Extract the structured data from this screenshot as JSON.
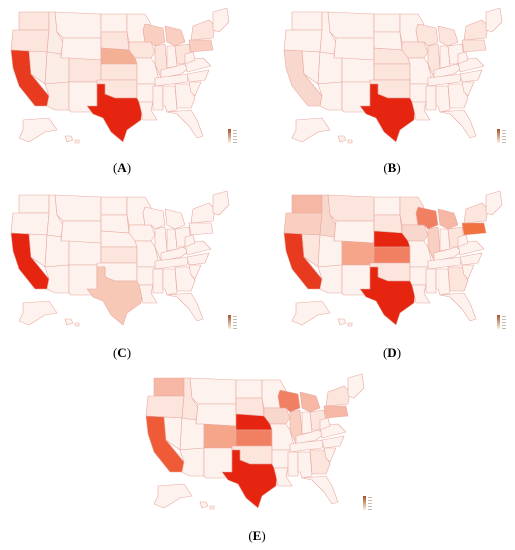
{
  "figure": {
    "panels": [
      {
        "id": "A",
        "caption_open": "(",
        "caption_label": "A",
        "caption_close": ")",
        "states": {
          "CA": "#e83a1f",
          "TX": "#e5250f",
          "NE": "#f4b094",
          "OR": "#fbe5dc",
          "WA": "#fbe5dc",
          "NV": "#fcece6",
          "ID": "#fcece6",
          "MT": "#fdf2ee",
          "WY": "#fdf2ee",
          "UT": "#fcece6",
          "AZ": "#fcece6",
          "CO": "#fbe5dc",
          "NM": "#fdf2ee",
          "ND": "#fdf2ee",
          "SD": "#fbe5dc",
          "KS": "#fbe5dc",
          "OK": "#fbe5dc",
          "MN": "#fdf2ee",
          "IA": "#fbe5dc",
          "MO": "#fdf2ee",
          "AR": "#fdf2ee",
          "LA": "#fdf2ee",
          "WI": "#f8cfc0",
          "IL": "#fbe5dc",
          "MI": "#f8cfc0",
          "IN": "#fdf2ee",
          "OH": "#fbe5dc",
          "KY": "#fdf2ee",
          "TN": "#fdf2ee",
          "MS": "#fdf2ee",
          "AL": "#fdf2ee",
          "GA": "#fdf2ee",
          "FL": "#fdf2ee",
          "SC": "#fdf2ee",
          "NC": "#fdf2ee",
          "VA": "#fdf2ee",
          "WV": "#fdf2ee",
          "PA": "#f8cfc0",
          "NY": "#fbe5dc",
          "NE-US": "#fdf2ee",
          "AK": "#fdf2ee",
          "HI": "#fdf2ee"
        }
      },
      {
        "id": "B",
        "caption_open": "(",
        "caption_label": "B",
        "caption_close": ")",
        "states": {
          "CA": "#f8d8cc",
          "TX": "#e5250f",
          "NE": "#fbe5dc",
          "OR": "#fdf2ee",
          "WA": "#fdf2ee",
          "NV": "#fdf2ee",
          "ID": "#fdf2ee",
          "MT": "#fdf2ee",
          "WY": "#fdf2ee",
          "UT": "#fdf2ee",
          "AZ": "#fdf2ee",
          "CO": "#fdf2ee",
          "NM": "#fdf2ee",
          "ND": "#fdf2ee",
          "SD": "#fdf2ee",
          "KS": "#fbe5dc",
          "OK": "#fbe5dc",
          "MN": "#fdf2ee",
          "IA": "#fbe5dc",
          "MO": "#fdf2ee",
          "AR": "#fdf2ee",
          "LA": "#fdf2ee",
          "WI": "#fbe5dc",
          "IL": "#fbe5dc",
          "MI": "#fbe5dc",
          "IN": "#fdf2ee",
          "OH": "#fdf2ee",
          "KY": "#fdf2ee",
          "TN": "#fdf2ee",
          "MS": "#fdf2ee",
          "AL": "#fdf2ee",
          "GA": "#fdf2ee",
          "FL": "#fdf2ee",
          "SC": "#fdf2ee",
          "NC": "#fdf2ee",
          "VA": "#fdf2ee",
          "WV": "#fdf2ee",
          "PA": "#fbe5dc",
          "NY": "#fbe5dc",
          "NE-US": "#fdf2ee",
          "AK": "#fdf2ee",
          "HI": "#fdf2ee"
        }
      },
      {
        "id": "C",
        "caption_open": "(",
        "caption_label": "C",
        "caption_close": ")",
        "states": {
          "CA": "#e5250f",
          "TX": "#f8c8b6",
          "NE": "#fdf2ee",
          "OR": "#fdf2ee",
          "WA": "#fdf2ee",
          "NV": "#fdf2ee",
          "ID": "#fdf2ee",
          "MT": "#fdf2ee",
          "WY": "#fdf2ee",
          "UT": "#fdf2ee",
          "AZ": "#fdf2ee",
          "CO": "#fdf2ee",
          "NM": "#fdf2ee",
          "ND": "#fdf2ee",
          "SD": "#fdf2ee",
          "KS": "#fbe5dc",
          "OK": "#fdf2ee",
          "MN": "#fdf2ee",
          "IA": "#fdf2ee",
          "MO": "#fdf2ee",
          "AR": "#fdf2ee",
          "LA": "#fdf2ee",
          "WI": "#fdf2ee",
          "IL": "#fdf2ee",
          "MI": "#fdf2ee",
          "IN": "#fdf2ee",
          "OH": "#fdf2ee",
          "KY": "#fdf2ee",
          "TN": "#fdf2ee",
          "MS": "#fdf2ee",
          "AL": "#fdf2ee",
          "GA": "#fdf2ee",
          "FL": "#fdf2ee",
          "SC": "#fdf2ee",
          "NC": "#fdf2ee",
          "VA": "#fdf2ee",
          "WV": "#fdf2ee",
          "PA": "#fdf2ee",
          "NY": "#fdf2ee",
          "NE-US": "#fdf2ee",
          "AK": "#fdf2ee",
          "HI": "#fdf2ee"
        }
      },
      {
        "id": "D",
        "caption_open": "(",
        "caption_label": "D",
        "caption_close": ")",
        "states": {
          "CA": "#e83a1f",
          "TX": "#e5250f",
          "NE": "#e5250f",
          "OR": "#f8cfc0",
          "WA": "#f6b8a4",
          "NV": "#fbe5dc",
          "ID": "#f8d8cc",
          "MT": "#fbe5dc",
          "WY": "#fdf2ee",
          "UT": "#fdf2ee",
          "AZ": "#fdf2ee",
          "CO": "#f4a58a",
          "NM": "#fdf2ee",
          "ND": "#fdf2ee",
          "SD": "#fbe5dc",
          "KS": "#f17f62",
          "OK": "#fbe5dc",
          "MN": "#fbe5dc",
          "IA": "#f8d8cc",
          "MO": "#fdf2ee",
          "AR": "#fdf2ee",
          "LA": "#fdf2ee",
          "WI": "#f17f62",
          "IL": "#f8cfc0",
          "MI": "#f6b8a4",
          "IN": "#fdf2ee",
          "OH": "#fbe5dc",
          "KY": "#fdf2ee",
          "TN": "#fdf2ee",
          "MS": "#fdf2ee",
          "AL": "#fdf2ee",
          "GA": "#fbe5dc",
          "FL": "#fdf2ee",
          "SC": "#fdf2ee",
          "NC": "#fdf2ee",
          "VA": "#fdf2ee",
          "WV": "#fdf2ee",
          "PA": "#f0733f",
          "NY": "#fbe5dc",
          "NE-US": "#fdf2ee",
          "AK": "#fdf2ee",
          "HI": "#fdf2ee"
        }
      },
      {
        "id": "E",
        "caption_open": "(",
        "caption_label": "E",
        "caption_close": ")",
        "states": {
          "CA": "#ef5b36",
          "TX": "#e5250f",
          "NE": "#e5250f",
          "OR": "#fbe5dc",
          "WA": "#f6b8a4",
          "NV": "#fdf2ee",
          "ID": "#fbe5dc",
          "MT": "#fdf2ee",
          "WY": "#fdf2ee",
          "UT": "#fdf2ee",
          "AZ": "#fdf2ee",
          "CO": "#f4a58a",
          "NM": "#fdf2ee",
          "ND": "#fdf2ee",
          "SD": "#fbe5dc",
          "KS": "#f17f62",
          "OK": "#fbe5dc",
          "MN": "#fdf2ee",
          "IA": "#f8d8cc",
          "MO": "#fdf2ee",
          "AR": "#fdf2ee",
          "LA": "#fdf2ee",
          "WI": "#f17f62",
          "IL": "#f8cfc0",
          "MI": "#f6b8a4",
          "IN": "#fdf2ee",
          "OH": "#fbe5dc",
          "KY": "#fdf2ee",
          "TN": "#fdf2ee",
          "MS": "#fdf2ee",
          "AL": "#fdf2ee",
          "GA": "#fbe5dc",
          "FL": "#fdf2ee",
          "SC": "#fdf2ee",
          "NC": "#fdf2ee",
          "VA": "#fdf2ee",
          "WV": "#fdf2ee",
          "PA": "#f6b8a4",
          "NY": "#fbe5dc",
          "NE-US": "#fdf2ee",
          "AK": "#fdf2ee",
          "HI": "#fdf2ee"
        }
      }
    ],
    "colors": {
      "state_border": "#e9a9a0",
      "legend_low": "#fff1e0",
      "legend_high": "#a0522d"
    }
  }
}
